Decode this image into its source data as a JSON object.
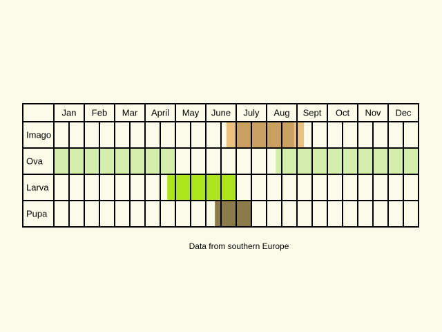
{
  "title": null,
  "months": [
    "Jan",
    "Feb",
    "Mar",
    "April",
    "May",
    "June",
    "July",
    "Aug",
    "Sept",
    "Oct",
    "Nov",
    "Dec"
  ],
  "rows": [
    {
      "label": "Imago",
      "periods": [
        {
          "start": 5.68,
          "end": 8.23,
          "color": "#e8c27e"
        },
        {
          "start": 6.0,
          "end": 7.9,
          "color": "#c9a062"
        }
      ]
    },
    {
      "label": "Ova",
      "periods": [
        {
          "start": 0,
          "end": 4.0,
          "color": "#d3edaa"
        },
        {
          "start": 7.3,
          "end": 12,
          "color": "#d3edaa"
        }
      ]
    },
    {
      "label": "Larva",
      "periods": [
        {
          "start": 3.73,
          "end": 6.0,
          "color": "#ade51c"
        }
      ]
    },
    {
      "label": "Pupa",
      "periods": [
        {
          "start": 5.3,
          "end": 6.5,
          "color": "#8b7a4a"
        }
      ]
    }
  ],
  "caption": "Data from southern Europe"
}
